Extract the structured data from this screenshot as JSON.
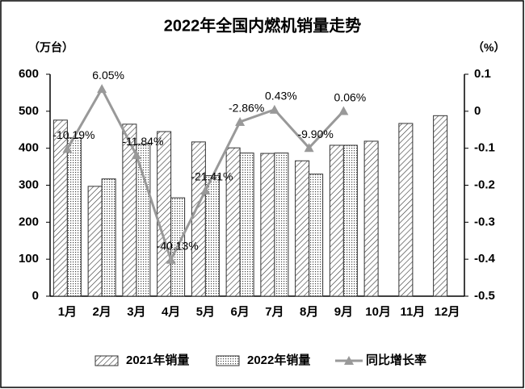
{
  "chart_data": {
    "type": "bar_line",
    "title": "2022年全国内燃机销量走势",
    "y_label": "（万台）",
    "y2_label": "（%）",
    "categories": [
      "1月",
      "2月",
      "3月",
      "4月",
      "5月",
      "6月",
      "7月",
      "8月",
      "9月",
      "10月",
      "11月",
      "12月"
    ],
    "series": [
      {
        "name": "2021年销量",
        "type": "bar",
        "color": "#333333",
        "values": [
          476,
          297,
          465,
          445,
          417,
          401,
          386,
          366,
          408,
          419,
          467,
          488
        ]
      },
      {
        "name": "2022年销量",
        "type": "bar",
        "color": "#333333",
        "values": [
          428,
          317,
          411,
          266,
          326,
          387,
          387,
          330,
          408,
          null,
          null,
          null
        ]
      },
      {
        "name": "同比增长率",
        "type": "line",
        "axis": "y2",
        "color": "#999999",
        "values": [
          -0.1019,
          0.0605,
          -0.1184,
          -0.4013,
          -0.2141,
          -0.0286,
          0.0043,
          -0.099,
          0.0006,
          null,
          null,
          null
        ],
        "value_labels": [
          "-10.19%",
          "6.05%",
          "-11.84%",
          "-40.13%",
          "-21.41%",
          "-2.86%",
          "0.43%",
          "-9.90%",
          "0.06%",
          null,
          null,
          null
        ]
      }
    ],
    "ylim": [
      0,
      600
    ],
    "yticks": [
      0,
      100,
      200,
      300,
      400,
      500,
      600
    ],
    "y2lim": [
      -0.5,
      0.1
    ],
    "y2ticks": [
      -0.5,
      -0.4,
      -0.3,
      -0.2,
      -0.1,
      0,
      0.1
    ],
    "legend": "bottom",
    "grid": false
  }
}
